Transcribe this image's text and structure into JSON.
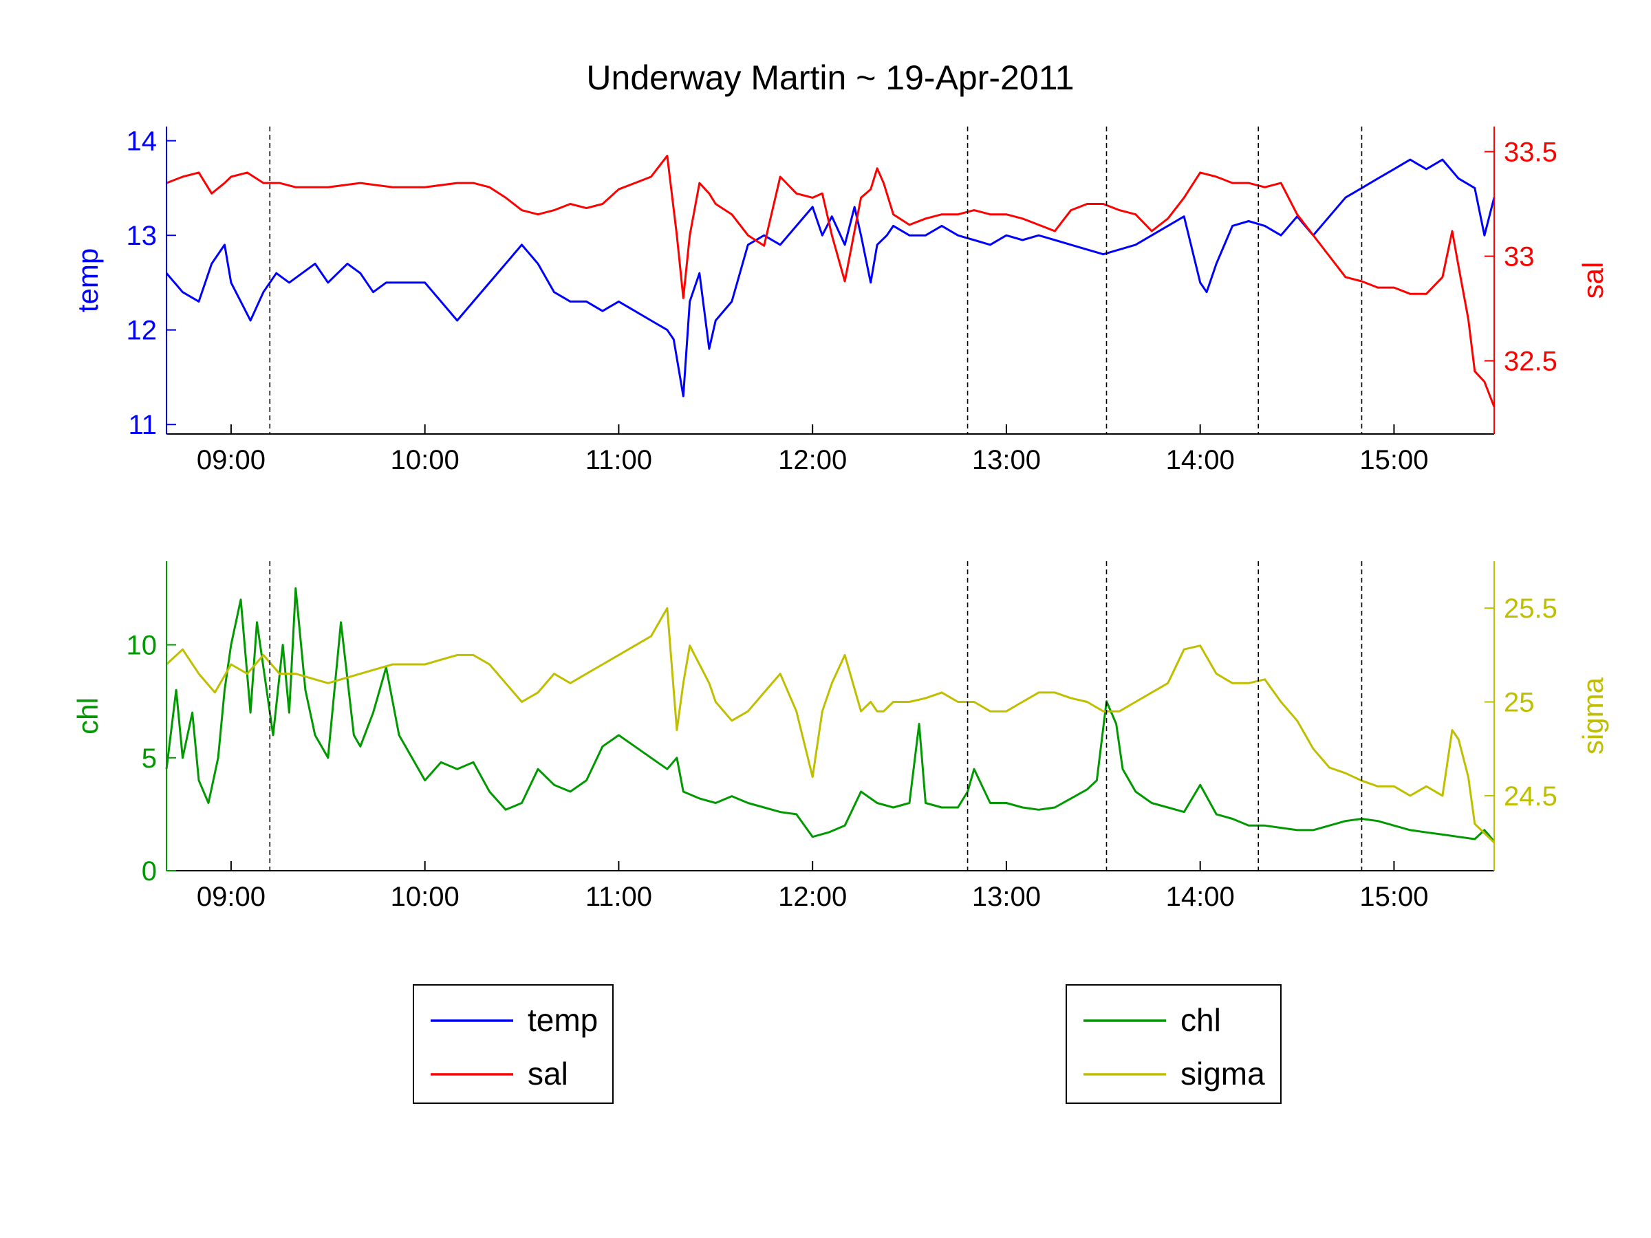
{
  "title": "Underway Martin ~ 19-Apr-2011",
  "colors": {
    "temp": "#0000ff",
    "sal": "#ff0000",
    "chl": "#009900",
    "sigma": "#bfbf00",
    "axis": "#000000",
    "marker": "#000000"
  },
  "chart_data": [
    {
      "type": "line",
      "xlabel": "",
      "x_ticks": [
        "09:00",
        "10:00",
        "11:00",
        "12:00",
        "13:00",
        "14:00",
        "15:00"
      ],
      "xlim": [
        "08:40",
        "15:31"
      ],
      "left_axis": {
        "label": "temp",
        "ylim": [
          10.9,
          14.15
        ],
        "ticks": [
          "11",
          "12",
          "13",
          "14"
        ]
      },
      "right_axis": {
        "label": "sal",
        "ylim": [
          32.15,
          33.62
        ],
        "ticks": [
          "32.5",
          "33",
          "33.5"
        ]
      },
      "vertical_markers": [
        "09:12",
        "12:48",
        "13:31",
        "14:18",
        "14:50"
      ],
      "grid": false,
      "series": [
        {
          "name": "temp",
          "axis": "left",
          "x": [
            "08:40",
            "08:45",
            "08:50",
            "08:54",
            "08:58",
            "09:00",
            "09:03",
            "09:06",
            "09:10",
            "09:14",
            "09:18",
            "09:22",
            "09:26",
            "09:30",
            "09:33",
            "09:36",
            "09:40",
            "09:44",
            "09:48",
            "09:52",
            "09:56",
            "10:00",
            "10:05",
            "10:10",
            "10:15",
            "10:20",
            "10:25",
            "10:30",
            "10:35",
            "10:40",
            "10:45",
            "10:50",
            "10:55",
            "11:00",
            "11:05",
            "11:10",
            "11:15",
            "11:17",
            "11:20",
            "11:22",
            "11:25",
            "11:28",
            "11:30",
            "11:35",
            "11:40",
            "11:45",
            "11:50",
            "11:55",
            "12:00",
            "12:03",
            "12:06",
            "12:10",
            "12:13",
            "12:15",
            "12:18",
            "12:20",
            "12:23",
            "12:25",
            "12:30",
            "12:35",
            "12:40",
            "12:45",
            "12:50",
            "12:55",
            "13:00",
            "13:05",
            "13:10",
            "13:15",
            "13:20",
            "13:25",
            "13:30",
            "13:35",
            "13:40",
            "13:45",
            "13:50",
            "13:55",
            "14:00",
            "14:02",
            "14:05",
            "14:10",
            "14:15",
            "14:20",
            "14:25",
            "14:30",
            "14:35",
            "14:40",
            "14:45",
            "14:50",
            "14:55",
            "15:00",
            "15:05",
            "15:10",
            "15:15",
            "15:20",
            "15:25",
            "15:28",
            "15:31"
          ],
          "values": [
            12.6,
            12.4,
            12.3,
            12.7,
            12.9,
            12.5,
            12.3,
            12.1,
            12.4,
            12.6,
            12.5,
            12.6,
            12.7,
            12.5,
            12.6,
            12.7,
            12.6,
            12.4,
            12.5,
            12.5,
            12.5,
            12.5,
            12.3,
            12.1,
            12.3,
            12.5,
            12.7,
            12.9,
            12.7,
            12.4,
            12.3,
            12.3,
            12.2,
            12.3,
            12.2,
            12.1,
            12.0,
            11.9,
            11.3,
            12.3,
            12.6,
            11.8,
            12.1,
            12.3,
            12.9,
            13.0,
            12.9,
            13.1,
            13.3,
            13.0,
            13.2,
            12.9,
            13.3,
            13.0,
            12.5,
            12.9,
            13.0,
            13.1,
            13.0,
            13.0,
            13.1,
            13.0,
            12.95,
            12.9,
            13.0,
            12.95,
            13.0,
            12.95,
            12.9,
            12.85,
            12.8,
            12.85,
            12.9,
            13.0,
            13.1,
            13.2,
            12.5,
            12.4,
            12.7,
            13.1,
            13.15,
            13.1,
            13.0,
            13.2,
            13.0,
            13.2,
            13.4,
            13.5,
            13.6,
            13.7,
            13.8,
            13.7,
            13.8,
            13.6,
            13.5,
            13.0,
            13.4
          ]
        },
        {
          "name": "sal",
          "axis": "right",
          "x": [
            "08:40",
            "08:45",
            "08:50",
            "08:54",
            "08:58",
            "09:00",
            "09:05",
            "09:10",
            "09:15",
            "09:20",
            "09:30",
            "09:40",
            "09:50",
            "10:00",
            "10:10",
            "10:15",
            "10:20",
            "10:25",
            "10:30",
            "10:35",
            "10:40",
            "10:45",
            "10:50",
            "10:55",
            "11:00",
            "11:05",
            "11:10",
            "11:15",
            "11:18",
            "11:20",
            "11:22",
            "11:25",
            "11:28",
            "11:30",
            "11:35",
            "11:40",
            "11:45",
            "11:50",
            "11:55",
            "12:00",
            "12:03",
            "12:06",
            "12:10",
            "12:15",
            "12:18",
            "12:20",
            "12:22",
            "12:25",
            "12:30",
            "12:35",
            "12:40",
            "12:45",
            "12:50",
            "12:55",
            "13:00",
            "13:05",
            "13:10",
            "13:15",
            "13:20",
            "13:25",
            "13:30",
            "13:35",
            "13:40",
            "13:45",
            "13:50",
            "13:55",
            "14:00",
            "14:05",
            "14:10",
            "14:15",
            "14:20",
            "14:25",
            "14:30",
            "14:35",
            "14:40",
            "14:45",
            "14:50",
            "14:55",
            "15:00",
            "15:05",
            "15:10",
            "15:15",
            "15:18",
            "15:20",
            "15:23",
            "15:25",
            "15:28",
            "15:31"
          ],
          "values": [
            33.35,
            33.38,
            33.4,
            33.3,
            33.35,
            33.38,
            33.4,
            33.35,
            33.35,
            33.33,
            33.33,
            33.35,
            33.33,
            33.33,
            33.35,
            33.35,
            33.33,
            33.28,
            33.22,
            33.2,
            33.22,
            33.25,
            33.23,
            33.25,
            33.32,
            33.35,
            33.38,
            33.48,
            33.1,
            32.8,
            33.1,
            33.35,
            33.3,
            33.25,
            33.2,
            33.1,
            33.05,
            33.38,
            33.3,
            33.28,
            33.3,
            33.1,
            32.88,
            33.28,
            33.32,
            33.42,
            33.35,
            33.2,
            33.15,
            33.18,
            33.2,
            33.2,
            33.22,
            33.2,
            33.2,
            33.18,
            33.15,
            33.12,
            33.22,
            33.25,
            33.25,
            33.22,
            33.2,
            33.12,
            33.18,
            33.28,
            33.4,
            33.38,
            33.35,
            33.35,
            33.33,
            33.35,
            33.2,
            33.1,
            33.0,
            32.9,
            32.88,
            32.85,
            32.85,
            32.82,
            32.82,
            32.9,
            33.12,
            32.95,
            32.7,
            32.45,
            32.4,
            32.28
          ]
        }
      ]
    },
    {
      "type": "line",
      "xlabel": "",
      "x_ticks": [
        "09:00",
        "10:00",
        "11:00",
        "12:00",
        "13:00",
        "14:00",
        "15:00"
      ],
      "xlim": [
        "08:40",
        "15:31"
      ],
      "left_axis": {
        "label": "chl",
        "ylim": [
          0,
          13.7
        ],
        "ticks": [
          "0",
          "5",
          "10"
        ]
      },
      "right_axis": {
        "label": "sigma",
        "ylim": [
          24.1,
          25.75
        ],
        "ticks": [
          "24.5",
          "25",
          "25.5"
        ]
      },
      "vertical_markers": [
        "09:12",
        "12:48",
        "13:31",
        "14:18",
        "14:50"
      ],
      "grid": false,
      "series": [
        {
          "name": "chl",
          "axis": "left",
          "x": [
            "08:40",
            "08:43",
            "08:45",
            "08:48",
            "08:50",
            "08:53",
            "08:56",
            "08:58",
            "09:00",
            "09:03",
            "09:06",
            "09:08",
            "09:10",
            "09:13",
            "09:16",
            "09:18",
            "09:20",
            "09:23",
            "09:26",
            "09:28",
            "09:30",
            "09:34",
            "09:38",
            "09:40",
            "09:44",
            "09:48",
            "09:52",
            "09:56",
            "10:00",
            "10:05",
            "10:10",
            "10:15",
            "10:20",
            "10:25",
            "10:30",
            "10:35",
            "10:40",
            "10:45",
            "10:50",
            "10:55",
            "11:00",
            "11:05",
            "11:10",
            "11:15",
            "11:18",
            "11:20",
            "11:25",
            "11:30",
            "11:35",
            "11:40",
            "11:45",
            "11:50",
            "11:55",
            "12:00",
            "12:05",
            "12:10",
            "12:15",
            "12:20",
            "12:25",
            "12:30",
            "12:33",
            "12:35",
            "12:40",
            "12:45",
            "12:48",
            "12:50",
            "12:55",
            "13:00",
            "13:05",
            "13:10",
            "13:15",
            "13:20",
            "13:25",
            "13:28",
            "13:31",
            "13:34",
            "13:36",
            "13:40",
            "13:45",
            "13:50",
            "13:55",
            "14:00",
            "14:05",
            "14:10",
            "14:15",
            "14:20",
            "14:25",
            "14:30",
            "14:35",
            "14:40",
            "14:45",
            "14:50",
            "14:55",
            "15:00",
            "15:05",
            "15:10",
            "15:15",
            "15:20",
            "15:25",
            "15:28",
            "15:31"
          ],
          "values": [
            4.5,
            8.0,
            5.0,
            7.0,
            4.0,
            3.0,
            5.0,
            8.0,
            10.0,
            12.0,
            7.0,
            11.0,
            9.0,
            6.0,
            10.0,
            7.0,
            12.5,
            8.0,
            6.0,
            5.5,
            5.0,
            11.0,
            6.0,
            5.5,
            7.0,
            9.0,
            6.0,
            5.0,
            4.0,
            4.8,
            4.5,
            4.8,
            3.5,
            2.7,
            3.0,
            4.5,
            3.8,
            3.5,
            4.0,
            5.5,
            6.0,
            5.5,
            5.0,
            4.5,
            5.0,
            3.5,
            3.2,
            3.0,
            3.3,
            3.0,
            2.8,
            2.6,
            2.5,
            1.5,
            1.7,
            2.0,
            3.5,
            3.0,
            2.8,
            3.0,
            6.5,
            3.0,
            2.8,
            2.8,
            3.5,
            4.5,
            3.0,
            3.0,
            2.8,
            2.7,
            2.8,
            3.2,
            3.6,
            4.0,
            7.5,
            6.5,
            4.5,
            3.5,
            3.0,
            2.8,
            2.6,
            3.8,
            2.5,
            2.3,
            2.0,
            2.0,
            1.9,
            1.8,
            1.8,
            2.0,
            2.2,
            2.3,
            2.2,
            2.0,
            1.8,
            1.7,
            1.6,
            1.5,
            1.4,
            1.8,
            1.3
          ]
        },
        {
          "name": "sigma",
          "axis": "right",
          "x": [
            "08:40",
            "08:45",
            "08:50",
            "08:55",
            "09:00",
            "09:05",
            "09:10",
            "09:15",
            "09:20",
            "09:30",
            "09:40",
            "09:50",
            "10:00",
            "10:10",
            "10:15",
            "10:20",
            "10:25",
            "10:30",
            "10:35",
            "10:40",
            "10:45",
            "10:50",
            "10:55",
            "11:00",
            "11:05",
            "11:10",
            "11:15",
            "11:18",
            "11:20",
            "11:22",
            "11:25",
            "11:28",
            "11:30",
            "11:35",
            "11:40",
            "11:45",
            "11:50",
            "11:55",
            "12:00",
            "12:03",
            "12:06",
            "12:10",
            "12:15",
            "12:18",
            "12:20",
            "12:22",
            "12:25",
            "12:30",
            "12:35",
            "12:40",
            "12:45",
            "12:50",
            "12:55",
            "13:00",
            "13:05",
            "13:10",
            "13:15",
            "13:20",
            "13:25",
            "13:30",
            "13:35",
            "13:40",
            "13:45",
            "13:50",
            "13:55",
            "14:00",
            "14:05",
            "14:10",
            "14:15",
            "14:20",
            "14:25",
            "14:30",
            "14:35",
            "14:40",
            "14:45",
            "14:50",
            "14:55",
            "15:00",
            "15:05",
            "15:10",
            "15:15",
            "15:18",
            "15:20",
            "15:23",
            "15:25",
            "15:28",
            "15:31"
          ],
          "values": [
            25.2,
            25.28,
            25.15,
            25.05,
            25.2,
            25.15,
            25.25,
            25.15,
            25.15,
            25.1,
            25.15,
            25.2,
            25.2,
            25.25,
            25.25,
            25.2,
            25.1,
            25.0,
            25.05,
            25.15,
            25.1,
            25.15,
            25.2,
            25.25,
            25.3,
            25.35,
            25.5,
            24.85,
            25.1,
            25.3,
            25.2,
            25.1,
            25.0,
            24.9,
            24.95,
            25.05,
            25.15,
            24.95,
            24.6,
            24.95,
            25.1,
            25.25,
            24.95,
            25.0,
            24.95,
            24.95,
            25.0,
            25.0,
            25.02,
            25.05,
            25.0,
            25.0,
            24.95,
            24.95,
            25.0,
            25.05,
            25.05,
            25.02,
            25.0,
            24.95,
            24.95,
            25.0,
            25.05,
            25.1,
            25.28,
            25.3,
            25.15,
            25.1,
            25.1,
            25.12,
            25.0,
            24.9,
            24.75,
            24.65,
            24.62,
            24.58,
            24.55,
            24.55,
            24.5,
            24.55,
            24.5,
            24.85,
            24.8,
            24.6,
            24.35,
            24.3,
            24.25
          ]
        }
      ]
    }
  ]
}
